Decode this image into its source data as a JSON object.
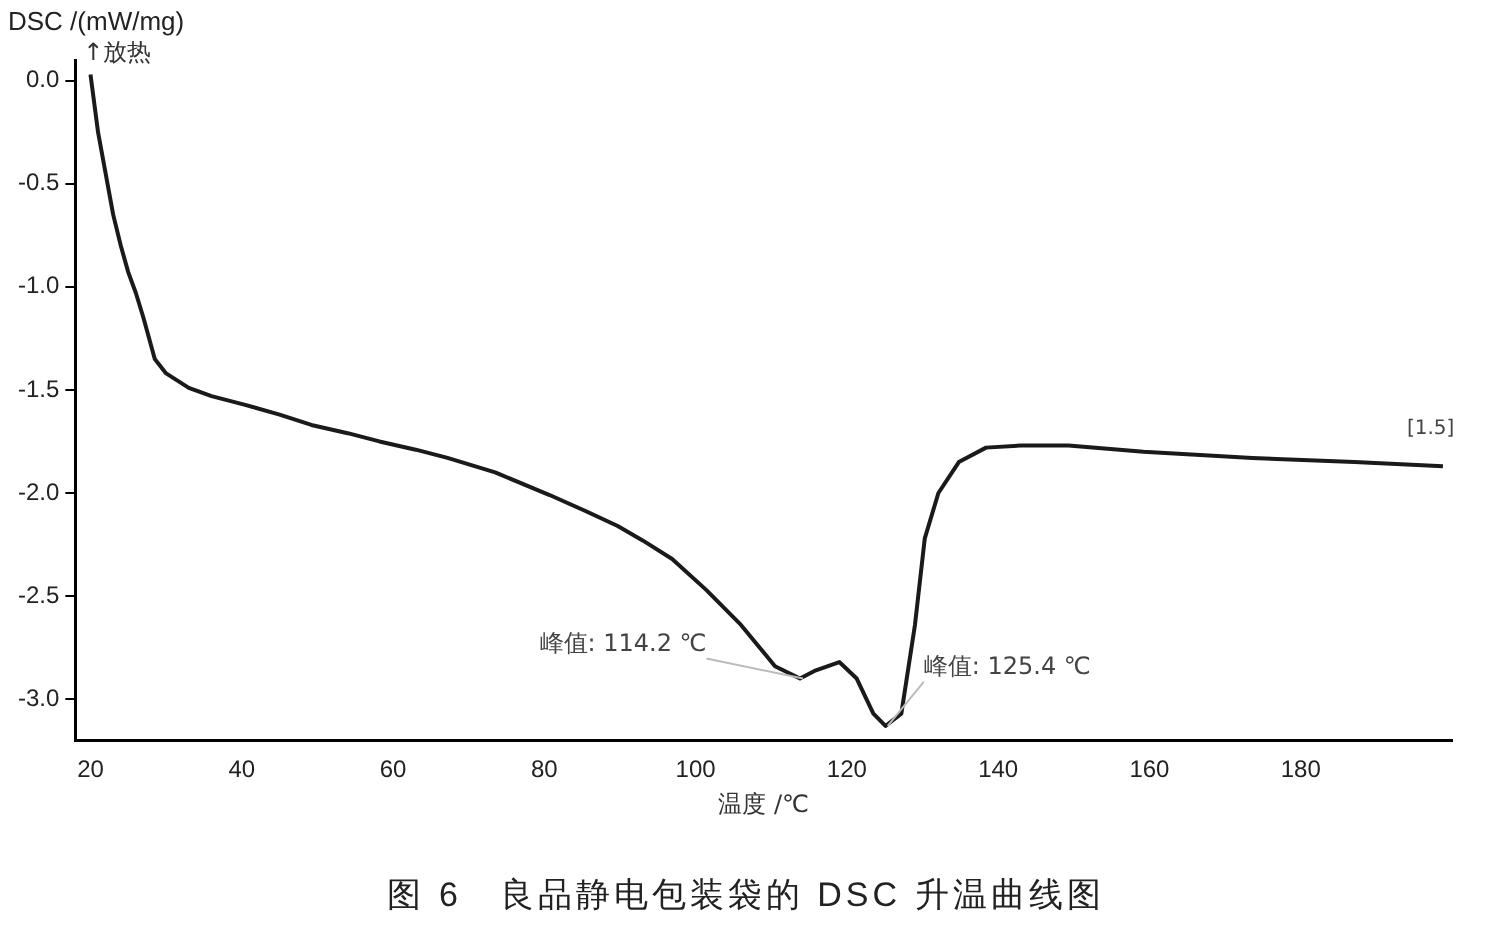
{
  "chart_data": {
    "type": "line",
    "title": "图 6　良品静电包装袋的 DSC 升温曲线图",
    "xlabel": "温度 /℃",
    "ylabel": "DSC /(mW/mg)",
    "annotations": [
      "↑放热",
      {
        "text": "峰值: 114.2 ℃",
        "x": 114.2,
        "y": -2.9
      },
      {
        "text": "峰值: 125.4 ℃",
        "x": 125.4,
        "y": -3.13
      },
      {
        "text": "[1.5]",
        "x": 198.8,
        "y": -1.87
      }
    ],
    "series": [
      {
        "color": "#1a1a1a",
        "x": [
          20,
          21,
          22,
          23,
          24,
          25,
          26,
          27,
          28.5,
          30,
          33,
          36,
          40.2,
          45,
          49.2,
          54,
          58.2,
          63,
          67.2,
          73.5,
          80.7,
          85,
          89.7,
          93,
          96.9,
          101.4,
          106,
          110.5,
          113.8,
          115.9,
          119,
          121.3,
          123.5,
          125.1,
          127.2,
          129,
          130.3,
          132.1,
          134.8,
          138.4,
          143,
          149.3,
          159.2,
          173.6,
          187.1,
          198.8
        ],
        "values": [
          0.03,
          -0.25,
          -0.45,
          -0.65,
          -0.8,
          -0.93,
          -1.03,
          -1.15,
          -1.35,
          -1.42,
          -1.49,
          -1.53,
          -1.57,
          -1.62,
          -1.67,
          -1.71,
          -1.75,
          -1.79,
          -1.83,
          -1.9,
          -2.01,
          -2.08,
          -2.16,
          -2.23,
          -2.32,
          -2.47,
          -2.64,
          -2.84,
          -2.9,
          -2.86,
          -2.82,
          -2.9,
          -3.07,
          -3.13,
          -3.07,
          -2.64,
          -2.22,
          -2,
          -1.85,
          -1.78,
          -1.77,
          -1.77,
          -1.8,
          -1.83,
          -1.85,
          -1.87
        ]
      }
    ],
    "xlim": [
      18,
      200
    ],
    "xticks": [
      20,
      40,
      60,
      80,
      100,
      120,
      140,
      160,
      180
    ],
    "ylim": [
      -3.2,
      0.1
    ],
    "yticks": [
      {
        "value": 0,
        "label": "0.0"
      },
      {
        "value": -0.5,
        "label": "-0.5"
      },
      {
        "value": -1,
        "label": "-1.0"
      },
      {
        "value": -1.5,
        "label": "-1.5"
      },
      {
        "value": -2,
        "label": "-2.0"
      },
      {
        "value": -2.5,
        "label": "-2.5"
      },
      {
        "value": -3,
        "label": "-3.0"
      }
    ],
    "grid": false,
    "legend": false,
    "marker": "none",
    "line_style": "solid"
  }
}
